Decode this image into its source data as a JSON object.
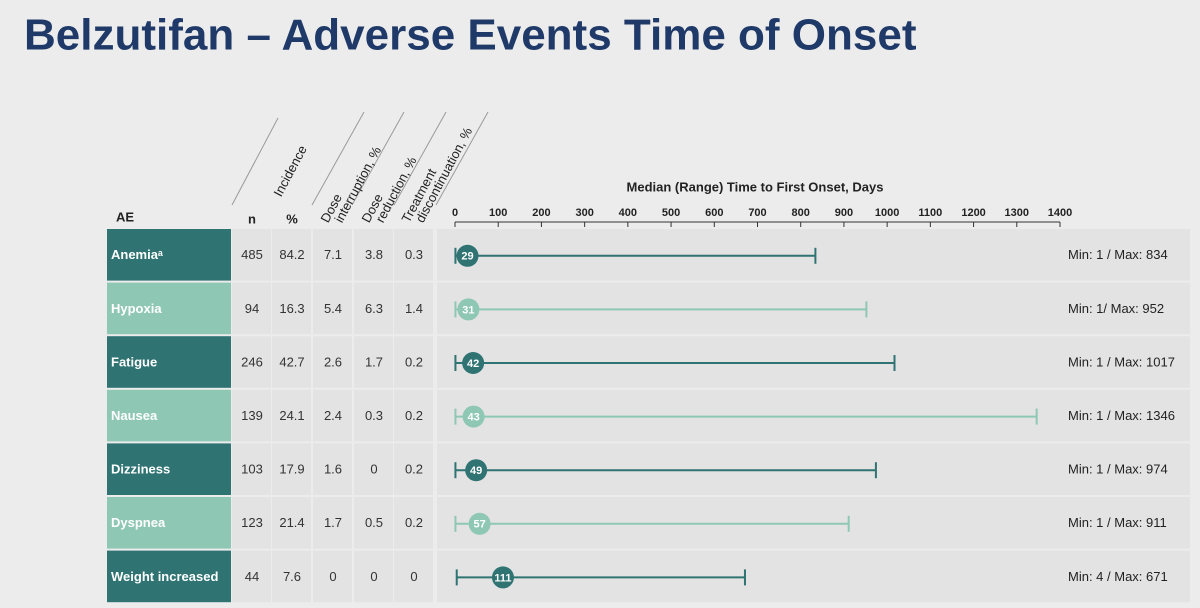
{
  "chart_data": {
    "type": "range",
    "title": "Belzutifan – Adverse Events Time of Onset",
    "axis_title": "Median (Range) Time to First Onset, Days",
    "xlim": [
      0,
      1400
    ],
    "xticks": [
      0,
      100,
      200,
      300,
      400,
      500,
      600,
      700,
      800,
      900,
      1000,
      1100,
      1200,
      1300,
      1400
    ],
    "categories": [
      "Anemiaᵃ",
      "Hypoxia",
      "Fatigue",
      "Nausea",
      "Dizziness",
      "Dyspnea",
      "Weight increased"
    ],
    "colors": [
      "#2f7373",
      "#8fc7b5",
      "#2f7373",
      "#8fc7b5",
      "#2f7373",
      "#8fc7b5",
      "#2f7373"
    ],
    "median": [
      29,
      31,
      42,
      43,
      49,
      57,
      111
    ],
    "min": [
      1,
      1,
      1,
      1,
      1,
      1,
      4
    ],
    "max": [
      834,
      952,
      1017,
      1346,
      974,
      911,
      671
    ],
    "range_labels": [
      "Min: 1 / Max: 834",
      "Min: 1/ Max: 952",
      "Min: 1 / Max: 1017",
      "Min: 1 / Max: 1346",
      "Min: 1 / Max: 974",
      "Min: 1 / Max: 911",
      "Min: 4 / Max: 671"
    ],
    "table": {
      "ae_header": "AE",
      "incidence_header": "Incidence",
      "columns": [
        {
          "header": [
            "n"
          ],
          "values": [
            485,
            94,
            246,
            139,
            103,
            123,
            44
          ]
        },
        {
          "header": [
            "%"
          ],
          "values": [
            84.2,
            16.3,
            42.7,
            24.1,
            17.9,
            21.4,
            7.6
          ]
        },
        {
          "header": [
            "Dose",
            "interruption, %"
          ],
          "values": [
            7.1,
            5.4,
            2.6,
            2.4,
            1.6,
            1.7,
            0
          ]
        },
        {
          "header": [
            "Dose",
            "reduction, %"
          ],
          "values": [
            3.8,
            6.3,
            1.7,
            0.3,
            0,
            0.5,
            0
          ]
        },
        {
          "header": [
            "Treatment",
            "discontinuation, %"
          ],
          "values": [
            0.3,
            1.4,
            0.2,
            0.2,
            0.2,
            0.2,
            0
          ]
        }
      ]
    }
  }
}
